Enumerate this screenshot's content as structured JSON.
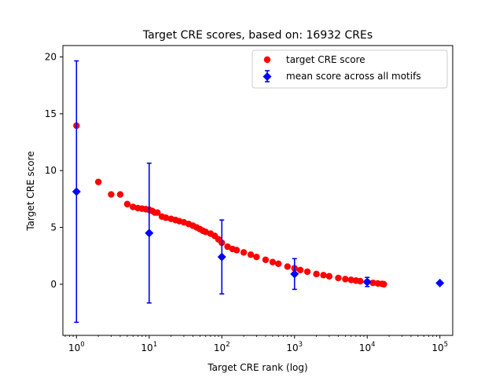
{
  "chart_data": {
    "type": "scatter",
    "title": "Target CRE scores, based on: 16932 CREs",
    "xlabel": "Target CRE rank (log)",
    "ylabel": "Target CRE score",
    "xscale": "log",
    "xlim": [
      0.65,
      150000
    ],
    "ylim": [
      -4.5,
      21.0
    ],
    "xticks": [
      {
        "value": 1,
        "base": "10",
        "exp": "0"
      },
      {
        "value": 10,
        "base": "10",
        "exp": "1"
      },
      {
        "value": 100,
        "base": "10",
        "exp": "2"
      },
      {
        "value": 1000,
        "base": "10",
        "exp": "3"
      },
      {
        "value": 10000,
        "base": "10",
        "exp": "4"
      },
      {
        "value": 100000,
        "base": "10",
        "exp": "5"
      }
    ],
    "yticks": [
      {
        "value": 0,
        "label": "0"
      },
      {
        "value": 5,
        "label": "5"
      },
      {
        "value": 10,
        "label": "10"
      },
      {
        "value": 15,
        "label": "15"
      },
      {
        "value": 20,
        "label": "20"
      }
    ],
    "grid": false,
    "legend_position": "top-right",
    "series": [
      {
        "name": "target CRE score",
        "color": "#ff0000",
        "marker": "circle",
        "points": [
          [
            1,
            13.95
          ],
          [
            2,
            9.0
          ],
          [
            3,
            7.9
          ],
          [
            4,
            7.9
          ],
          [
            5,
            7.05
          ],
          [
            6,
            6.8
          ],
          [
            7,
            6.7
          ],
          [
            8,
            6.65
          ],
          [
            9,
            6.6
          ],
          [
            10,
            6.55
          ],
          [
            11,
            6.45
          ],
          [
            12,
            6.3
          ],
          [
            13,
            6.3
          ],
          [
            15,
            5.95
          ],
          [
            17,
            5.85
          ],
          [
            20,
            5.75
          ],
          [
            23,
            5.65
          ],
          [
            26,
            5.55
          ],
          [
            30,
            5.45
          ],
          [
            35,
            5.3
          ],
          [
            40,
            5.15
          ],
          [
            45,
            5.0
          ],
          [
            50,
            4.85
          ],
          [
            55,
            4.7
          ],
          [
            60,
            4.6
          ],
          [
            70,
            4.45
          ],
          [
            80,
            4.25
          ],
          [
            90,
            3.95
          ],
          [
            100,
            3.65
          ],
          [
            120,
            3.3
          ],
          [
            140,
            3.1
          ],
          [
            160,
            3.0
          ],
          [
            200,
            2.8
          ],
          [
            250,
            2.6
          ],
          [
            300,
            2.4
          ],
          [
            400,
            2.15
          ],
          [
            500,
            1.95
          ],
          [
            600,
            1.8
          ],
          [
            800,
            1.55
          ],
          [
            1000,
            1.4
          ],
          [
            1200,
            1.25
          ],
          [
            1500,
            1.1
          ],
          [
            2000,
            0.9
          ],
          [
            2500,
            0.8
          ],
          [
            3000,
            0.7
          ],
          [
            4000,
            0.55
          ],
          [
            5000,
            0.45
          ],
          [
            6000,
            0.38
          ],
          [
            7000,
            0.32
          ],
          [
            8000,
            0.27
          ],
          [
            10000,
            0.2
          ],
          [
            12000,
            0.12
          ],
          [
            14000,
            0.07
          ],
          [
            16000,
            0.03
          ],
          [
            16932,
            0.0
          ]
        ]
      },
      {
        "name": "mean score across all motifs",
        "color": "#0000ff",
        "marker": "diamond",
        "points": [
          {
            "x": 1,
            "y": 8.15,
            "ylow": -3.35,
            "yhigh": 19.65
          },
          {
            "x": 10,
            "y": 4.5,
            "ylow": -1.65,
            "yhigh": 10.65
          },
          {
            "x": 100,
            "y": 2.4,
            "ylow": -0.85,
            "yhigh": 5.65
          },
          {
            "x": 1000,
            "y": 0.9,
            "ylow": -0.45,
            "yhigh": 2.25
          },
          {
            "x": 10000,
            "y": 0.2,
            "ylow": -0.2,
            "yhigh": 0.6
          },
          {
            "x": 100000,
            "y": 0.1
          }
        ]
      }
    ]
  }
}
